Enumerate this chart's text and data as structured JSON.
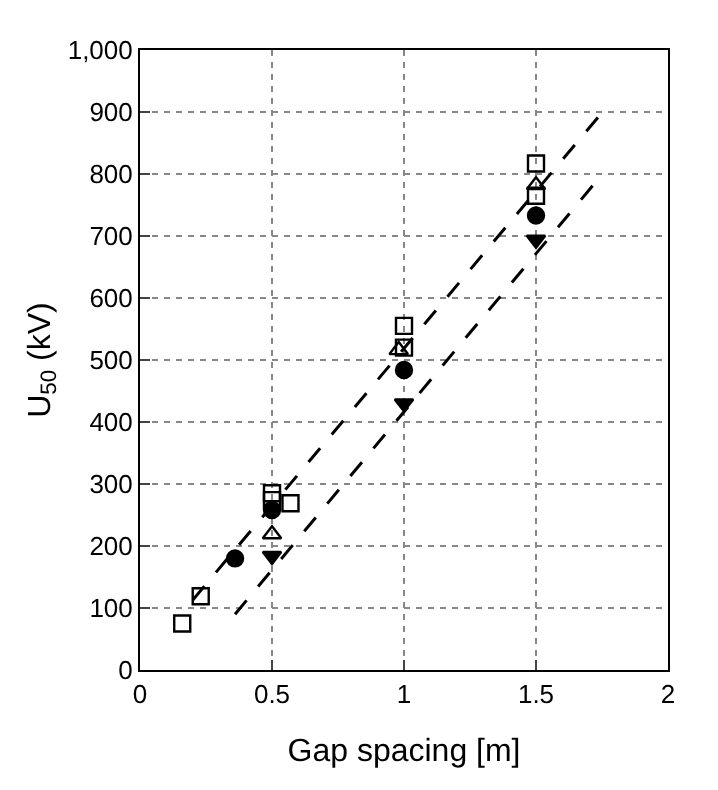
{
  "chart_data": {
    "type": "scatter",
    "xlabel": "Gap spacing [m]",
    "ylabel": "U$_{50}$ (kV)",
    "xlim": [
      0,
      2
    ],
    "xticks": [
      0,
      0.5,
      1,
      1.5,
      2
    ],
    "ylim": [
      0,
      1000
    ],
    "yticks": [
      0,
      100,
      200,
      300,
      400,
      500,
      600,
      700,
      800,
      900,
      {
        "value": 1000,
        "label": "1,000"
      }
    ],
    "grid": true,
    "series": [
      {
        "marker": "square-open",
        "color": "#000000",
        "x": [
          0.16,
          0.23,
          0.5,
          0.5,
          0.57,
          1.0,
          1.0,
          1.5,
          1.5
        ],
        "values": [
          75,
          119,
          285,
          274,
          269,
          555,
          520,
          817,
          765
        ]
      },
      {
        "marker": "triangle-open",
        "color": "#000000",
        "x": [
          0.5,
          0.98,
          1.5
        ],
        "values": [
          219,
          516,
          782
        ]
      },
      {
        "marker": "circle",
        "color": "#000000",
        "x": [
          0.36,
          0.5,
          1.0,
          1.5
        ],
        "values": [
          180,
          258,
          484,
          733
        ]
      },
      {
        "marker": "triangle-down",
        "color": "#000000",
        "x": [
          0.5,
          1.0,
          1.5
        ],
        "values": [
          184,
          430,
          694
        ]
      },
      {
        "type": "line",
        "line_style": "dashed",
        "color": "#000000",
        "x": [
          0.2,
          1.74
        ],
        "values": [
          113,
          894
        ]
      },
      {
        "type": "line",
        "line_style": "dashed",
        "color": "#000000",
        "x": [
          0.36,
          1.74
        ],
        "values": [
          90,
          794
        ]
      }
    ]
  }
}
